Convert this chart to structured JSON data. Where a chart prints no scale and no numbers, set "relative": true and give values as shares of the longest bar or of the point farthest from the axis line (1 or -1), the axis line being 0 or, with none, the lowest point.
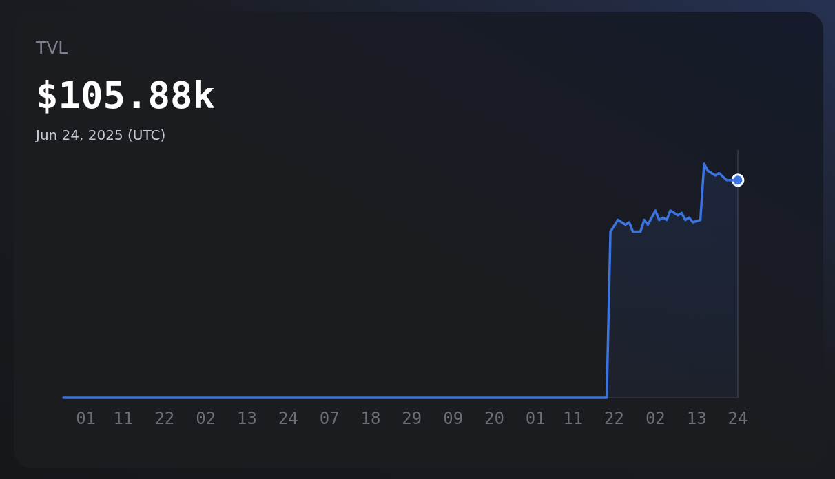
{
  "chart_data": {
    "type": "area",
    "title": "TVL",
    "relative": true,
    "annotations": [
      "$105.88k",
      "Jun 24, 2025 (UTC)"
    ],
    "xticks": [
      {
        "value": "2025-01-01",
        "label": "01"
      },
      {
        "value": "2025-01-11",
        "label": "11"
      },
      {
        "value": "2025-01-22",
        "label": "22"
      },
      {
        "value": "2025-02-02",
        "label": "02"
      },
      {
        "value": "2025-02-13",
        "label": "13"
      },
      {
        "value": "2025-02-24",
        "label": "24"
      },
      {
        "value": "2025-03-07",
        "label": "07"
      },
      {
        "value": "2025-03-18",
        "label": "18"
      },
      {
        "value": "2025-03-29",
        "label": "29"
      },
      {
        "value": "2025-04-09",
        "label": "09"
      },
      {
        "value": "2025-04-20",
        "label": "20"
      },
      {
        "value": "2025-05-01",
        "label": "01"
      },
      {
        "value": "2025-05-11",
        "label": "11"
      },
      {
        "value": "2025-05-22",
        "label": "22"
      },
      {
        "value": "2025-06-02",
        "label": "02"
      },
      {
        "value": "2025-06-13",
        "label": "13"
      },
      {
        "value": "2025-06-24",
        "label": "24"
      }
    ],
    "xlim": [
      "2024-12-26",
      "2025-06-24"
    ],
    "ref_lines": [
      {
        "axis": "x",
        "value": "2025-06-24",
        "color": "#3a3d45"
      }
    ],
    "marker": "none",
    "line_style": "solid",
    "series": [
      {
        "color": "#3b74e0",
        "x": [
          "2024-12-26",
          "2025-05-20",
          "2025-05-21",
          "2025-05-23",
          "2025-05-25",
          "2025-05-26",
          "2025-05-27",
          "2025-05-29",
          "2025-05-30",
          "2025-05-31",
          "2025-06-02",
          "2025-06-03",
          "2025-06-04",
          "2025-06-05",
          "2025-06-06",
          "2025-06-08",
          "2025-06-09",
          "2025-06-10",
          "2025-06-11",
          "2025-06-12",
          "2025-06-14",
          "2025-06-15",
          "2025-06-16",
          "2025-06-18",
          "2025-06-19",
          "2025-06-21",
          "2025-06-24"
        ],
        "values": [
          0,
          0,
          0.71,
          0.76,
          0.74,
          0.75,
          0.71,
          0.71,
          0.76,
          0.74,
          0.8,
          0.76,
          0.77,
          0.76,
          0.8,
          0.78,
          0.79,
          0.76,
          0.77,
          0.75,
          0.76,
          1,
          0.97,
          0.95,
          0.96,
          0.93,
          0.93
        ]
      }
    ]
  }
}
